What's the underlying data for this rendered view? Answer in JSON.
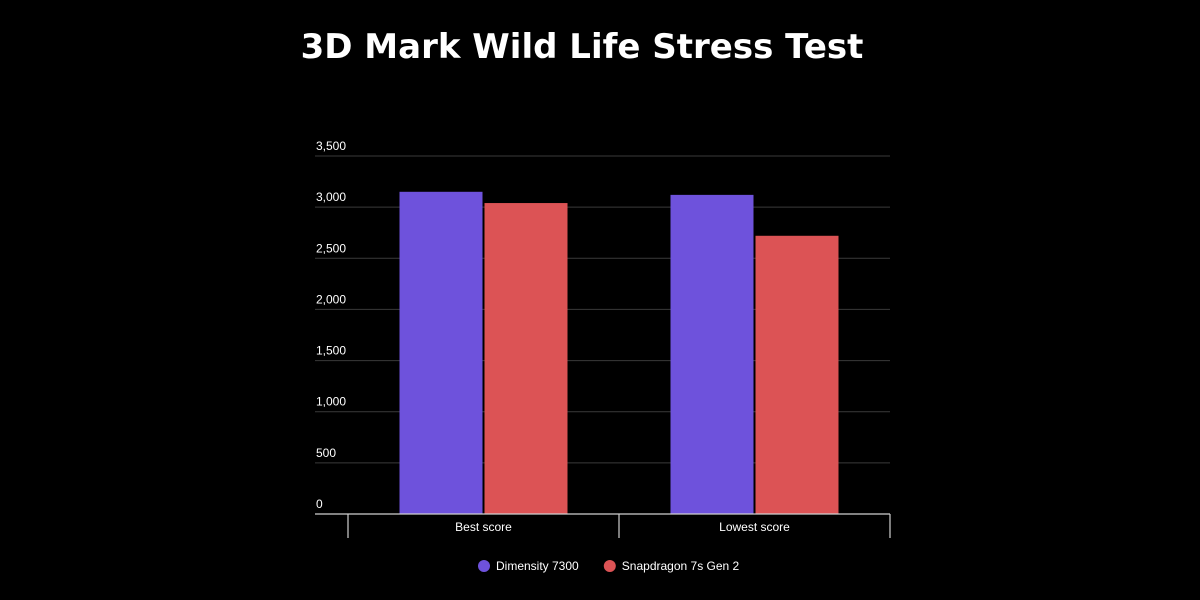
{
  "chart_data": {
    "type": "bar",
    "title": "3D Mark Wild Life Stress Test",
    "categories": [
      "Best score",
      "Lowest score"
    ],
    "series": [
      {
        "name": "Dimensity 7300",
        "color": "#6e52dc",
        "values": [
          3150,
          3120
        ]
      },
      {
        "name": "Snapdragon 7s Gen 2",
        "color": "#dc5355",
        "values": [
          3040,
          2720
        ]
      }
    ],
    "yticks": [
      "0",
      "500",
      "1,000",
      "1,500",
      "2,000",
      "2,500",
      "3,000",
      "3,500"
    ],
    "ylim": [
      0,
      3500
    ],
    "grid": true,
    "legend_position": "bottom-center"
  }
}
